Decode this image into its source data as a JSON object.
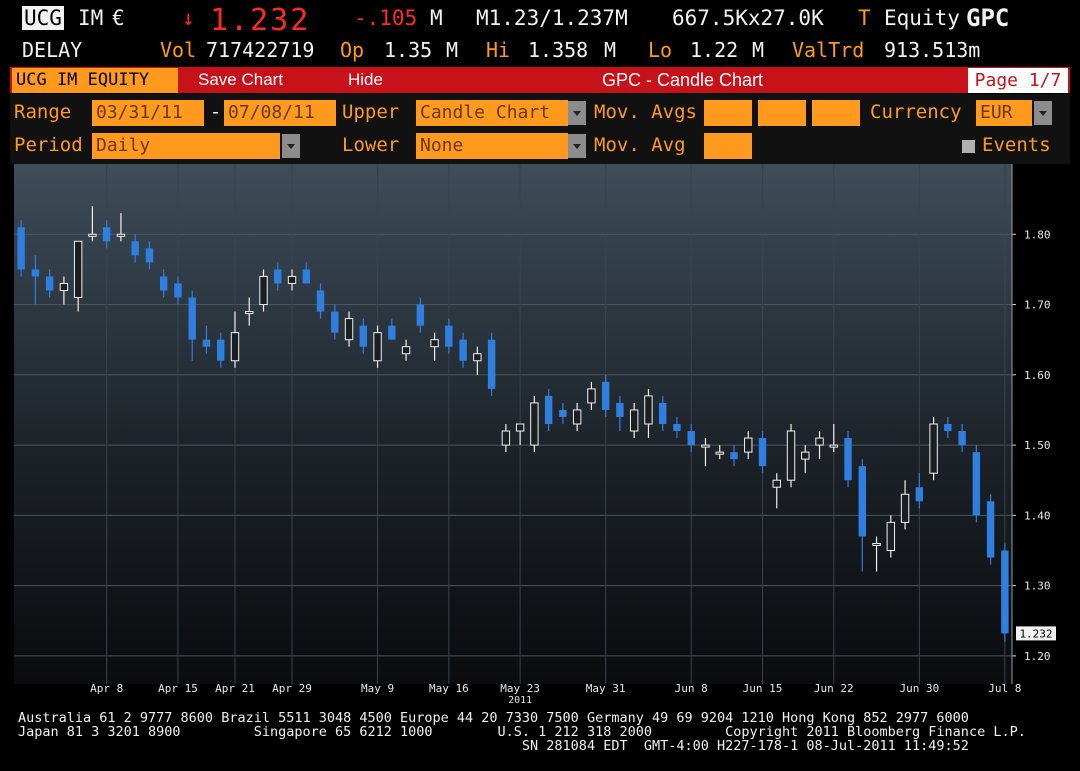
{
  "quote": {
    "ticker": "UCG",
    "exchange": "IM",
    "currency_symbol": "€",
    "arrow": "↓",
    "price": "1.232",
    "change": "-.105",
    "change_unit": "M",
    "bid_ask": "M1.23/1.237M",
    "size": "667.5Kx27.0K",
    "t_flag": "T",
    "equity_label": "Equity",
    "function_code": "GPC",
    "delay": "DELAY",
    "vol_label": "Vol",
    "vol_value": "717422719",
    "open_label": "Op",
    "open_value": "1.35",
    "open_unit": "M",
    "high_label": "Hi",
    "high_value": "1.358",
    "high_unit": "M",
    "low_label": "Lo",
    "low_value": "1.22",
    "low_unit": "M",
    "valtrd_label": "ValTrd",
    "valtrd_value": "913.513m"
  },
  "menubar": {
    "security": "UCG IM EQUITY",
    "save_chart": "Save Chart",
    "hide": "Hide",
    "title": "GPC - Candle Chart",
    "page": "Page 1/7"
  },
  "controls": {
    "range_label": "Range",
    "range_start": "03/31/11",
    "range_sep": "-",
    "range_end": "07/08/11",
    "upper_label": "Upper",
    "upper_value": "Candle Chart",
    "mov_avgs_label": "Mov. Avgs",
    "currency_label": "Currency",
    "currency_value": "EUR",
    "period_label": "Period",
    "period_value": "Daily",
    "lower_label": "Lower",
    "lower_value": "None",
    "mov_avg_label": "Mov. Avg",
    "events_label": "Events"
  },
  "colors": {
    "accent_orange": "#ff9a1f",
    "menu_red": "#c7121a",
    "candle_down": "#2f7fe0",
    "candle_up": "#f0f0f0"
  },
  "chart_data": {
    "type": "candlestick",
    "title": "",
    "xlabel": "",
    "ylabel": "",
    "ylim": [
      1.16,
      1.9
    ],
    "yticks": [
      "1.80",
      "1.70",
      "1.60",
      "1.50",
      "1.40",
      "1.30",
      "1.20"
    ],
    "last_price_label": "1.232",
    "year_label": "2011",
    "xtick_labels": [
      {
        "label": "Apr 8",
        "index": 6
      },
      {
        "label": "Apr 15",
        "index": 11
      },
      {
        "label": "Apr 21",
        "index": 15
      },
      {
        "label": "Apr 29",
        "index": 19
      },
      {
        "label": "May 9",
        "index": 25
      },
      {
        "label": "May 16",
        "index": 30
      },
      {
        "label": "May 23",
        "index": 35
      },
      {
        "label": "May 31",
        "index": 41
      },
      {
        "label": "Jun 8",
        "index": 47
      },
      {
        "label": "Jun 15",
        "index": 52
      },
      {
        "label": "Jun 22",
        "index": 57
      },
      {
        "label": "Jun 30",
        "index": 63
      },
      {
        "label": "Jul 8",
        "index": 69
      }
    ],
    "candles": [
      {
        "o": 1.81,
        "h": 1.82,
        "l": 1.74,
        "c": 1.75
      },
      {
        "o": 1.75,
        "h": 1.77,
        "l": 1.7,
        "c": 1.74
      },
      {
        "o": 1.74,
        "h": 1.75,
        "l": 1.71,
        "c": 1.72
      },
      {
        "o": 1.72,
        "h": 1.74,
        "l": 1.7,
        "c": 1.73
      },
      {
        "o": 1.71,
        "h": 1.79,
        "l": 1.69,
        "c": 1.79
      },
      {
        "o": 1.8,
        "h": 1.84,
        "l": 1.79,
        "c": 1.8
      },
      {
        "o": 1.81,
        "h": 1.82,
        "l": 1.78,
        "c": 1.79
      },
      {
        "o": 1.8,
        "h": 1.83,
        "l": 1.79,
        "c": 1.8
      },
      {
        "o": 1.79,
        "h": 1.8,
        "l": 1.76,
        "c": 1.77
      },
      {
        "o": 1.78,
        "h": 1.79,
        "l": 1.75,
        "c": 1.76
      },
      {
        "o": 1.74,
        "h": 1.75,
        "l": 1.71,
        "c": 1.72
      },
      {
        "o": 1.73,
        "h": 1.74,
        "l": 1.7,
        "c": 1.71
      },
      {
        "o": 1.71,
        "h": 1.72,
        "l": 1.62,
        "c": 1.65
      },
      {
        "o": 1.65,
        "h": 1.67,
        "l": 1.63,
        "c": 1.64
      },
      {
        "o": 1.65,
        "h": 1.66,
        "l": 1.61,
        "c": 1.62
      },
      {
        "o": 1.62,
        "h": 1.69,
        "l": 1.61,
        "c": 1.66
      },
      {
        "o": 1.69,
        "h": 1.71,
        "l": 1.67,
        "c": 1.69
      },
      {
        "o": 1.7,
        "h": 1.75,
        "l": 1.69,
        "c": 1.74
      },
      {
        "o": 1.75,
        "h": 1.76,
        "l": 1.72,
        "c": 1.73
      },
      {
        "o": 1.73,
        "h": 1.75,
        "l": 1.72,
        "c": 1.74
      },
      {
        "o": 1.75,
        "h": 1.76,
        "l": 1.73,
        "c": 1.73
      },
      {
        "o": 1.72,
        "h": 1.73,
        "l": 1.68,
        "c": 1.69
      },
      {
        "o": 1.69,
        "h": 1.7,
        "l": 1.65,
        "c": 1.66
      },
      {
        "o": 1.65,
        "h": 1.69,
        "l": 1.64,
        "c": 1.68
      },
      {
        "o": 1.67,
        "h": 1.68,
        "l": 1.63,
        "c": 1.64
      },
      {
        "o": 1.62,
        "h": 1.67,
        "l": 1.61,
        "c": 1.66
      },
      {
        "o": 1.67,
        "h": 1.68,
        "l": 1.65,
        "c": 1.65
      },
      {
        "o": 1.63,
        "h": 1.65,
        "l": 1.62,
        "c": 1.64
      },
      {
        "o": 1.7,
        "h": 1.71,
        "l": 1.66,
        "c": 1.67
      },
      {
        "o": 1.64,
        "h": 1.66,
        "l": 1.62,
        "c": 1.65
      },
      {
        "o": 1.67,
        "h": 1.68,
        "l": 1.63,
        "c": 1.64
      },
      {
        "o": 1.65,
        "h": 1.66,
        "l": 1.61,
        "c": 1.62
      },
      {
        "o": 1.62,
        "h": 1.64,
        "l": 1.6,
        "c": 1.63
      },
      {
        "o": 1.65,
        "h": 1.66,
        "l": 1.57,
        "c": 1.58
      },
      {
        "o": 1.5,
        "h": 1.53,
        "l": 1.49,
        "c": 1.52
      },
      {
        "o": 1.52,
        "h": 1.53,
        "l": 1.5,
        "c": 1.53
      },
      {
        "o": 1.5,
        "h": 1.57,
        "l": 1.49,
        "c": 1.56
      },
      {
        "o": 1.57,
        "h": 1.58,
        "l": 1.52,
        "c": 1.53
      },
      {
        "o": 1.55,
        "h": 1.56,
        "l": 1.53,
        "c": 1.54
      },
      {
        "o": 1.53,
        "h": 1.56,
        "l": 1.52,
        "c": 1.55
      },
      {
        "o": 1.56,
        "h": 1.59,
        "l": 1.55,
        "c": 1.58
      },
      {
        "o": 1.59,
        "h": 1.6,
        "l": 1.54,
        "c": 1.55
      },
      {
        "o": 1.56,
        "h": 1.57,
        "l": 1.52,
        "c": 1.54
      },
      {
        "o": 1.52,
        "h": 1.56,
        "l": 1.51,
        "c": 1.55
      },
      {
        "o": 1.53,
        "h": 1.58,
        "l": 1.51,
        "c": 1.57
      },
      {
        "o": 1.56,
        "h": 1.57,
        "l": 1.52,
        "c": 1.53
      },
      {
        "o": 1.53,
        "h": 1.54,
        "l": 1.51,
        "c": 1.52
      },
      {
        "o": 1.52,
        "h": 1.53,
        "l": 1.49,
        "c": 1.5
      },
      {
        "o": 1.5,
        "h": 1.51,
        "l": 1.47,
        "c": 1.5
      },
      {
        "o": 1.49,
        "h": 1.5,
        "l": 1.48,
        "c": 1.49
      },
      {
        "o": 1.49,
        "h": 1.5,
        "l": 1.47,
        "c": 1.48
      },
      {
        "o": 1.49,
        "h": 1.52,
        "l": 1.48,
        "c": 1.51
      },
      {
        "o": 1.51,
        "h": 1.52,
        "l": 1.46,
        "c": 1.47
      },
      {
        "o": 1.44,
        "h": 1.46,
        "l": 1.41,
        "c": 1.45
      },
      {
        "o": 1.45,
        "h": 1.53,
        "l": 1.44,
        "c": 1.52
      },
      {
        "o": 1.48,
        "h": 1.5,
        "l": 1.46,
        "c": 1.49
      },
      {
        "o": 1.5,
        "h": 1.52,
        "l": 1.48,
        "c": 1.51
      },
      {
        "o": 1.5,
        "h": 1.53,
        "l": 1.49,
        "c": 1.5
      },
      {
        "o": 1.51,
        "h": 1.52,
        "l": 1.44,
        "c": 1.45
      },
      {
        "o": 1.47,
        "h": 1.48,
        "l": 1.32,
        "c": 1.37
      },
      {
        "o": 1.36,
        "h": 1.37,
        "l": 1.32,
        "c": 1.36
      },
      {
        "o": 1.35,
        "h": 1.4,
        "l": 1.34,
        "c": 1.39
      },
      {
        "o": 1.39,
        "h": 1.45,
        "l": 1.38,
        "c": 1.43
      },
      {
        "o": 1.44,
        "h": 1.46,
        "l": 1.41,
        "c": 1.42
      },
      {
        "o": 1.46,
        "h": 1.54,
        "l": 1.45,
        "c": 1.53
      },
      {
        "o": 1.53,
        "h": 1.54,
        "l": 1.51,
        "c": 1.52
      },
      {
        "o": 1.52,
        "h": 1.53,
        "l": 1.49,
        "c": 1.5
      },
      {
        "o": 1.49,
        "h": 1.5,
        "l": 1.39,
        "c": 1.4
      },
      {
        "o": 1.42,
        "h": 1.43,
        "l": 1.33,
        "c": 1.34
      },
      {
        "o": 1.35,
        "h": 1.36,
        "l": 1.22,
        "c": 1.232
      }
    ]
  },
  "footer": {
    "line1": "Australia 61 2 9777 8600 Brazil 5511 3048 4500 Europe 44 20 7330 7500 Germany 49 69 9204 1210 Hong Kong 852 2977 6000",
    "line2": "Japan 81 3 3201 8900         Singapore 65 6212 1000        U.S. 1 212 318 2000         Copyright 2011 Bloomberg Finance L.P.",
    "line3": "                                                              SN 281084 EDT  GMT-4:00 H227-178-1 08-Jul-2011 11:49:52"
  }
}
